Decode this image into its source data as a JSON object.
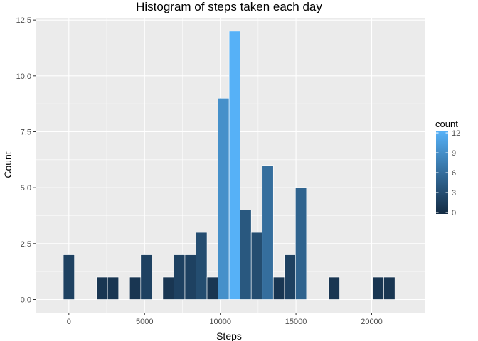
{
  "chart_data": {
    "type": "bar",
    "title": "Histogram of steps taken each day",
    "xlabel": "Steps",
    "ylabel": "Count",
    "xlim": [
      -2200,
      23500
    ],
    "ylim": [
      -0.62,
      12.6
    ],
    "x_ticks": [
      0,
      5000,
      10000,
      15000,
      20000
    ],
    "x_tick_labels": [
      "0",
      "5000",
      "10000",
      "15000",
      "20000"
    ],
    "y_ticks": [
      0,
      2.5,
      5,
      7.5,
      10,
      12.5
    ],
    "y_tick_labels": [
      "0.0",
      "2.5",
      "5.0",
      "7.5",
      "10.0",
      "12.5"
    ],
    "grid": true,
    "legend_position": "right",
    "bin_width": 730,
    "bins": [
      {
        "center": 0,
        "count": 2
      },
      {
        "center": 2190,
        "count": 1
      },
      {
        "center": 2920,
        "count": 1
      },
      {
        "center": 4380,
        "count": 1
      },
      {
        "center": 5110,
        "count": 2
      },
      {
        "center": 6570,
        "count": 1
      },
      {
        "center": 7300,
        "count": 2
      },
      {
        "center": 8030,
        "count": 2
      },
      {
        "center": 8760,
        "count": 3
      },
      {
        "center": 9490,
        "count": 1
      },
      {
        "center": 10220,
        "count": 9
      },
      {
        "center": 10950,
        "count": 12
      },
      {
        "center": 11680,
        "count": 4
      },
      {
        "center": 12410,
        "count": 3
      },
      {
        "center": 13140,
        "count": 6
      },
      {
        "center": 13870,
        "count": 1
      },
      {
        "center": 14600,
        "count": 2
      },
      {
        "center": 15330,
        "count": 5
      },
      {
        "center": 17520,
        "count": 1
      },
      {
        "center": 20440,
        "count": 1
      },
      {
        "center": 21170,
        "count": 1
      }
    ],
    "legend": {
      "title": "count",
      "breaks": [
        0,
        3,
        6,
        9,
        12
      ],
      "labels": [
        "0",
        "3",
        "6",
        "9",
        "12"
      ],
      "low_color": "#132B43",
      "high_color": "#56B1F7"
    },
    "colors": {
      "panel_bg": "#EBEBEB",
      "grid_major": "#FFFFFF",
      "bar_outline": "#FFFFFF"
    }
  }
}
